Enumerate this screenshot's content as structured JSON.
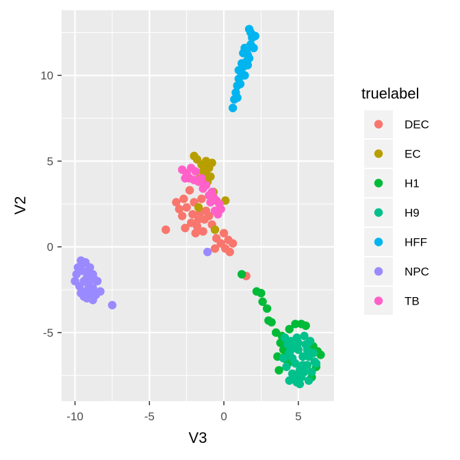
{
  "chart_data": {
    "type": "scatter",
    "title": "",
    "xlabel": "V3",
    "ylabel": "V2",
    "xlim": [
      -10.9,
      7.4
    ],
    "ylim": [
      -9.0,
      13.8
    ],
    "xticks": [
      -10,
      -5,
      0,
      5
    ],
    "xtick_labels": [
      "-10",
      "-5",
      "0",
      "5"
    ],
    "yticks": [
      -5,
      0,
      5,
      10
    ],
    "ytick_labels": [
      "-5",
      "0",
      "5",
      "10"
    ],
    "grid": true,
    "legend": {
      "title": "truelabel",
      "placement": "right"
    },
    "series": [
      {
        "name": "DEC",
        "color": "#F8766D",
        "points": [
          [
            -2.5,
            2.3
          ],
          [
            -2.0,
            2.6
          ],
          [
            -1.6,
            2.0
          ],
          [
            -1.3,
            1.6
          ],
          [
            -2.8,
            1.8
          ],
          [
            -2.2,
            1.4
          ],
          [
            -1.8,
            1.2
          ],
          [
            -2.6,
            1.1
          ],
          [
            -3.0,
            2.2
          ],
          [
            -2.3,
            3.3
          ],
          [
            -1.5,
            2.8
          ],
          [
            -1.9,
            0.8
          ],
          [
            -1.4,
            0.9
          ],
          [
            -2.1,
            1.9
          ],
          [
            -1.7,
            1.6
          ],
          [
            -3.2,
            2.6
          ],
          [
            -1.2,
            2.1
          ],
          [
            -0.5,
            0.5
          ],
          [
            -0.2,
            0.2
          ],
          [
            0.1,
            -0.1
          ],
          [
            0.3,
            0.4
          ],
          [
            -0.8,
            1.3
          ],
          [
            0.4,
            -0.3
          ],
          [
            0.6,
            0.2
          ],
          [
            -3.9,
            1.0
          ],
          [
            1.5,
            -1.7
          ],
          [
            -2.7,
            2.8
          ],
          [
            -1.0,
            1.8
          ],
          [
            -0.6,
            -0.1
          ],
          [
            0.0,
            0.8
          ]
        ]
      },
      {
        "name": "EC",
        "color": "#B79F00",
        "points": [
          [
            -1.8,
            5.1
          ],
          [
            -1.5,
            4.8
          ],
          [
            -1.2,
            5.0
          ],
          [
            -1.0,
            4.6
          ],
          [
            -1.4,
            4.4
          ],
          [
            -1.6,
            4.0
          ],
          [
            -1.2,
            4.2
          ],
          [
            -0.9,
            4.1
          ],
          [
            -2.0,
            5.3
          ],
          [
            -1.1,
            3.8
          ],
          [
            -0.7,
            3.2
          ],
          [
            -1.7,
            2.3
          ],
          [
            -0.6,
            1.0
          ],
          [
            0.1,
            2.7
          ],
          [
            -0.8,
            4.9
          ]
        ]
      },
      {
        "name": "H1",
        "color": "#00BA38",
        "points": [
          [
            1.2,
            -1.6
          ],
          [
            2.2,
            -2.6
          ],
          [
            2.5,
            -2.7
          ],
          [
            2.6,
            -3.2
          ],
          [
            2.9,
            -3.6
          ],
          [
            3.0,
            -4.3
          ],
          [
            3.2,
            -4.4
          ],
          [
            3.5,
            -5.0
          ],
          [
            3.8,
            -5.6
          ],
          [
            4.0,
            -6.0
          ],
          [
            4.3,
            -6.8
          ],
          [
            3.7,
            -7.2
          ],
          [
            6.0,
            -5.8
          ],
          [
            6.3,
            -6.1
          ],
          [
            5.9,
            -7.6
          ],
          [
            4.4,
            -4.8
          ],
          [
            4.1,
            -6.4
          ],
          [
            3.9,
            -5.2
          ],
          [
            5.5,
            -4.6
          ],
          [
            6.5,
            -6.3
          ],
          [
            3.6,
            -6.4
          ],
          [
            4.8,
            -4.5
          ],
          [
            5.2,
            -4.5
          ],
          [
            6.2,
            -7.0
          ]
        ]
      },
      {
        "name": "H9",
        "color": "#00C08B",
        "points": [
          [
            4.5,
            -5.5
          ],
          [
            5.0,
            -6.0
          ],
          [
            5.3,
            -6.4
          ],
          [
            4.8,
            -6.8
          ],
          [
            5.6,
            -6.9
          ],
          [
            4.2,
            -7.0
          ],
          [
            4.6,
            -7.4
          ],
          [
            5.2,
            -7.6
          ],
          [
            5.7,
            -7.8
          ],
          [
            4.9,
            -5.3
          ],
          [
            5.5,
            -5.7
          ],
          [
            6.0,
            -6.2
          ],
          [
            4.4,
            -6.2
          ],
          [
            5.1,
            -7.2
          ],
          [
            4.0,
            -6.5
          ],
          [
            5.9,
            -7.3
          ],
          [
            4.7,
            -5.9
          ],
          [
            5.4,
            -5.2
          ],
          [
            4.3,
            -5.7
          ],
          [
            6.1,
            -6.7
          ],
          [
            5.8,
            -5.5
          ],
          [
            4.9,
            -7.9
          ],
          [
            5.3,
            -6.9
          ],
          [
            4.6,
            -6.5
          ],
          [
            5.0,
            -5.6
          ],
          [
            4.1,
            -5.3
          ],
          [
            5.6,
            -6.0
          ],
          [
            4.8,
            -7.6
          ],
          [
            5.4,
            -7.3
          ],
          [
            4.4,
            -7.8
          ],
          [
            6.2,
            -6.8
          ],
          [
            5.1,
            -8.0
          ],
          [
            4.5,
            -6.0
          ],
          [
            5.7,
            -6.4
          ]
        ]
      },
      {
        "name": "HFF",
        "color": "#00B4EF",
        "points": [
          [
            0.6,
            8.1
          ],
          [
            0.7,
            8.6
          ],
          [
            0.8,
            9.0
          ],
          [
            0.9,
            9.4
          ],
          [
            1.0,
            9.8
          ],
          [
            1.2,
            10.1
          ],
          [
            1.3,
            10.5
          ],
          [
            1.5,
            10.8
          ],
          [
            1.6,
            11.2
          ],
          [
            1.4,
            11.6
          ],
          [
            1.7,
            11.0
          ],
          [
            1.8,
            11.8
          ],
          [
            1.9,
            12.2
          ],
          [
            2.0,
            11.6
          ],
          [
            1.7,
            12.7
          ],
          [
            2.1,
            12.3
          ],
          [
            1.2,
            10.7
          ],
          [
            1.5,
            11.4
          ],
          [
            1.1,
            9.5
          ],
          [
            1.4,
            10.0
          ],
          [
            1.8,
            12.5
          ],
          [
            1.0,
            10.3
          ],
          [
            1.3,
            11.3
          ],
          [
            1.6,
            10.6
          ],
          [
            0.9,
            8.7
          ]
        ]
      },
      {
        "name": "NPC",
        "color": "#9A8AFF",
        "points": [
          [
            -9.6,
            -0.8
          ],
          [
            -9.3,
            -0.9
          ],
          [
            -9.0,
            -1.2
          ],
          [
            -8.8,
            -1.6
          ],
          [
            -9.5,
            -1.4
          ],
          [
            -9.9,
            -1.6
          ],
          [
            -10.0,
            -2.0
          ],
          [
            -9.7,
            -2.3
          ],
          [
            -9.4,
            -2.0
          ],
          [
            -9.1,
            -2.2
          ],
          [
            -8.8,
            -2.4
          ],
          [
            -8.6,
            -2.8
          ],
          [
            -8.9,
            -2.9
          ],
          [
            -9.3,
            -2.6
          ],
          [
            -9.6,
            -2.7
          ],
          [
            -9.2,
            -3.0
          ],
          [
            -8.8,
            -3.1
          ],
          [
            -9.5,
            -1.0
          ],
          [
            -9.1,
            -1.5
          ],
          [
            -8.5,
            -2.0
          ],
          [
            -8.3,
            -2.6
          ],
          [
            -9.8,
            -1.2
          ],
          [
            -9.2,
            -1.8
          ],
          [
            -7.5,
            -3.4
          ],
          [
            -1.1,
            -0.3
          ],
          [
            -9.0,
            -2.6
          ],
          [
            -8.7,
            -1.9
          ],
          [
            -9.4,
            -2.9
          ]
        ]
      },
      {
        "name": "TB",
        "color": "#FF61C9",
        "points": [
          [
            -2.5,
            4.3
          ],
          [
            -2.2,
            4.6
          ],
          [
            -1.9,
            4.4
          ],
          [
            -2.6,
            4.0
          ],
          [
            -2.0,
            3.9
          ],
          [
            -1.2,
            3.6
          ],
          [
            -0.8,
            3.2
          ],
          [
            -1.0,
            3.0
          ],
          [
            -0.5,
            2.7
          ],
          [
            -0.3,
            2.5
          ],
          [
            -0.6,
            2.1
          ],
          [
            -0.2,
            2.2
          ],
          [
            -1.4,
            3.4
          ],
          [
            -0.9,
            2.6
          ],
          [
            -0.4,
            1.9
          ],
          [
            -2.3,
            4.0
          ],
          [
            -1.7,
            3.8
          ],
          [
            -2.8,
            4.5
          ],
          [
            -1.5,
            4.0
          ],
          [
            -0.7,
            2.9
          ]
        ]
      }
    ]
  }
}
